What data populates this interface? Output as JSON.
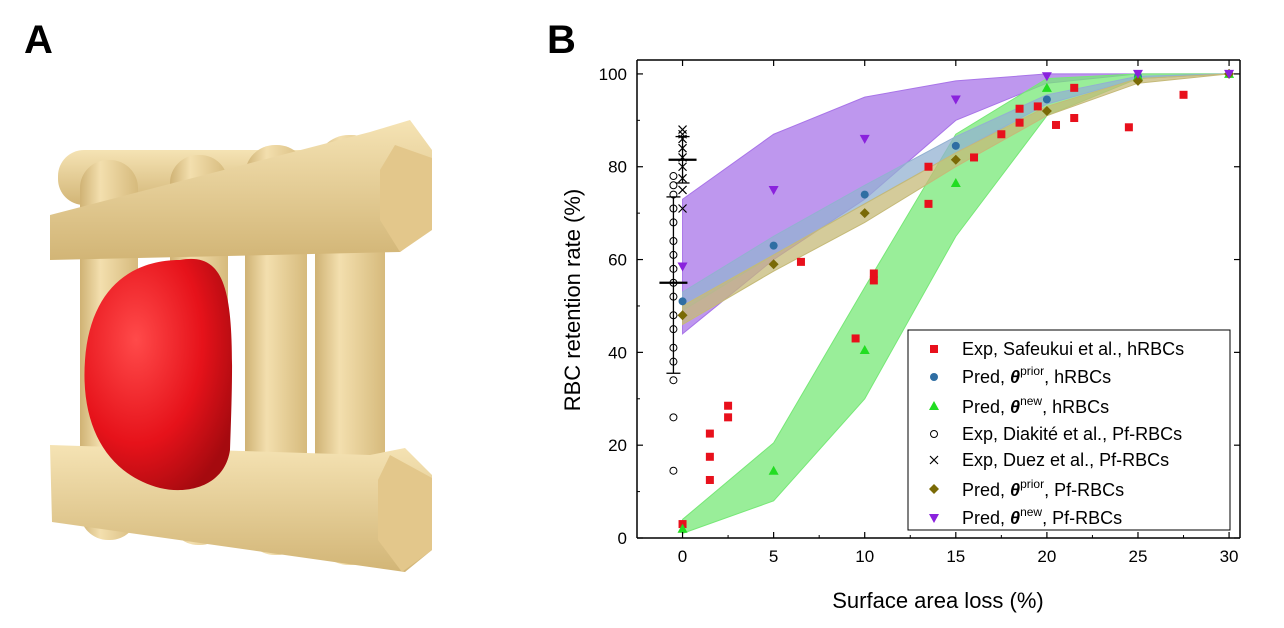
{
  "panels": {
    "a_label": "A",
    "b_label": "B"
  },
  "chart_data": {
    "type": "scatter",
    "xlabel": "Surface area loss (%)",
    "ylabel": "RBC retention rate (%)",
    "xlim": [
      -2.5,
      30.6
    ],
    "ylim": [
      0,
      103
    ],
    "xticks": [
      0,
      5,
      10,
      15,
      20,
      25,
      30
    ],
    "yticks": [
      0,
      20,
      40,
      60,
      80,
      100
    ],
    "grid": false,
    "legend_position": "bottom-right",
    "series": [
      {
        "name": "Exp, Safeukui et al., hRBCs",
        "marker": "square",
        "color": "#e8101c",
        "points": [
          [
            0,
            3
          ],
          [
            1.5,
            12.5
          ],
          [
            1.5,
            17.5
          ],
          [
            1.5,
            22.5
          ],
          [
            2.5,
            26
          ],
          [
            2.5,
            28.5
          ],
          [
            6.5,
            59.5
          ],
          [
            9.5,
            43
          ],
          [
            10.5,
            55.5
          ],
          [
            10.5,
            57
          ],
          [
            13.5,
            72
          ],
          [
            13.5,
            80
          ],
          [
            16,
            82
          ],
          [
            17.5,
            87
          ],
          [
            18.5,
            89.5
          ],
          [
            18.5,
            92.5
          ],
          [
            19.5,
            93
          ],
          [
            20.5,
            89
          ],
          [
            21.5,
            90.5
          ],
          [
            21.5,
            97
          ],
          [
            24.5,
            88.5
          ],
          [
            27.5,
            95.5
          ]
        ]
      },
      {
        "name": "Pred, θprior, hRBCs",
        "marker": "circle",
        "color": "#2f6ea3",
        "points": [
          [
            0,
            51
          ],
          [
            5,
            63
          ],
          [
            10,
            74
          ],
          [
            15,
            84.5
          ],
          [
            20,
            94.5
          ],
          [
            25,
            99.5
          ],
          [
            30,
            100
          ]
        ]
      },
      {
        "name": "Pred, θnew, hRBCs",
        "marker": "triangle-up",
        "color": "#22dd22",
        "points": [
          [
            0,
            2
          ],
          [
            5,
            14.5
          ],
          [
            10,
            40.5
          ],
          [
            15,
            76.5
          ],
          [
            20,
            97
          ],
          [
            25,
            99.5
          ],
          [
            30,
            100
          ]
        ]
      },
      {
        "name": "Exp, Diakité et al., Pf-RBCs",
        "marker": "open-circle",
        "color": "#000000",
        "points": [
          [
            -0.5,
            14.5
          ],
          [
            -0.5,
            26
          ],
          [
            -0.5,
            34
          ],
          [
            -0.5,
            38
          ],
          [
            -0.5,
            41
          ],
          [
            -0.5,
            45
          ],
          [
            -0.5,
            48
          ],
          [
            -0.5,
            52
          ],
          [
            -0.5,
            55
          ],
          [
            -0.5,
            58
          ],
          [
            -0.5,
            61
          ],
          [
            -0.5,
            64
          ],
          [
            -0.5,
            68
          ],
          [
            -0.5,
            71
          ],
          [
            -0.5,
            74
          ],
          [
            -0.5,
            76
          ],
          [
            -0.5,
            78
          ]
        ]
      },
      {
        "name": "Exp, Duez et al., Pf-RBCs",
        "marker": "cross",
        "color": "#000000",
        "points": [
          [
            0,
            71
          ],
          [
            0,
            75
          ],
          [
            0,
            77.5
          ],
          [
            0,
            80
          ],
          [
            0,
            82
          ],
          [
            0,
            84
          ],
          [
            0,
            86
          ],
          [
            0,
            88
          ],
          [
            0,
            87
          ]
        ]
      },
      {
        "name": "Pred, θprior, Pf-RBCs",
        "marker": "diamond",
        "color": "#7a6a06",
        "points": [
          [
            0,
            48
          ],
          [
            5,
            59
          ],
          [
            10,
            70
          ],
          [
            15,
            81.5
          ],
          [
            20,
            92
          ],
          [
            25,
            98.5
          ],
          [
            30,
            100
          ]
        ]
      },
      {
        "name": "Pred, θnew, Pf-RBCs",
        "marker": "triangle-down",
        "color": "#8a22dd",
        "points": [
          [
            0,
            58.5
          ],
          [
            5,
            75
          ],
          [
            10,
            86
          ],
          [
            15,
            94.5
          ],
          [
            20,
            99.5
          ],
          [
            25,
            100
          ],
          [
            30,
            100
          ]
        ]
      }
    ],
    "bands": [
      {
        "series": "Pred, θnew, Pf-RBCs",
        "fill": "#a874e8",
        "x": [
          0,
          5,
          10,
          15,
          20,
          25,
          30
        ],
        "upper": [
          73,
          87,
          95,
          98.5,
          100,
          100,
          100
        ],
        "lower": [
          44,
          60,
          73,
          90,
          98,
          100,
          100
        ]
      },
      {
        "series": "Pred, θnew, hRBCs",
        "fill": "#77e877",
        "x": [
          0,
          5,
          10,
          15,
          20,
          25,
          30
        ],
        "upper": [
          4,
          20.5,
          54,
          87,
          99,
          100,
          100
        ],
        "lower": [
          1,
          8,
          30,
          65,
          91,
          99,
          100
        ]
      },
      {
        "series": "Pred, θprior, hRBCs",
        "fill": "#93b1d1",
        "x": [
          0,
          5,
          10,
          15,
          20,
          25,
          30
        ],
        "upper": [
          53,
          65,
          76,
          86.5,
          95.5,
          99.5,
          100
        ],
        "lower": [
          49,
          61,
          72,
          83,
          93.5,
          99,
          100
        ]
      },
      {
        "series": "Pred, θprior, Pf-RBCs",
        "fill": "#c5ba78",
        "x": [
          0,
          5,
          10,
          15,
          20,
          25,
          30
        ],
        "upper": [
          50,
          61,
          72,
          83,
          93,
          99,
          100
        ],
        "lower": [
          46,
          57.5,
          68,
          80,
          91,
          98,
          100
        ]
      }
    ],
    "error_bars": [
      {
        "x": -0.5,
        "mean": 55,
        "low": 35.5,
        "high": 73.5
      },
      {
        "x": 0,
        "mean": 81.5,
        "low": 76.5,
        "high": 86.5
      }
    ]
  },
  "legend": {
    "entries": [
      {
        "prefix": "Exp, Safeukui et al., hRBCs",
        "sup": "",
        "suffix": ""
      },
      {
        "prefix": "Pred, ",
        "sym": "θ",
        "sup": "prior",
        "suffix": ", hRBCs"
      },
      {
        "prefix": "Pred, ",
        "sym": "θ",
        "sup": "new",
        "suffix": ", hRBCs"
      },
      {
        "prefix": "Exp, Diakité et al., Pf-RBCs",
        "sup": "",
        "suffix": ""
      },
      {
        "prefix": "Exp, Duez et al., Pf-RBCs",
        "sup": "",
        "suffix": ""
      },
      {
        "prefix": "Pred, ",
        "sym": "θ",
        "sup": "prior",
        "suffix": ", Pf-RBCs"
      },
      {
        "prefix": "Pred, ",
        "sym": "θ",
        "sup": "new",
        "suffix": ", Pf-RBCs"
      }
    ]
  },
  "illustration": {
    "frame_color": "#f0d9a2",
    "frame_shade": "#d9bd7c",
    "cell_color": "#e6121a"
  }
}
